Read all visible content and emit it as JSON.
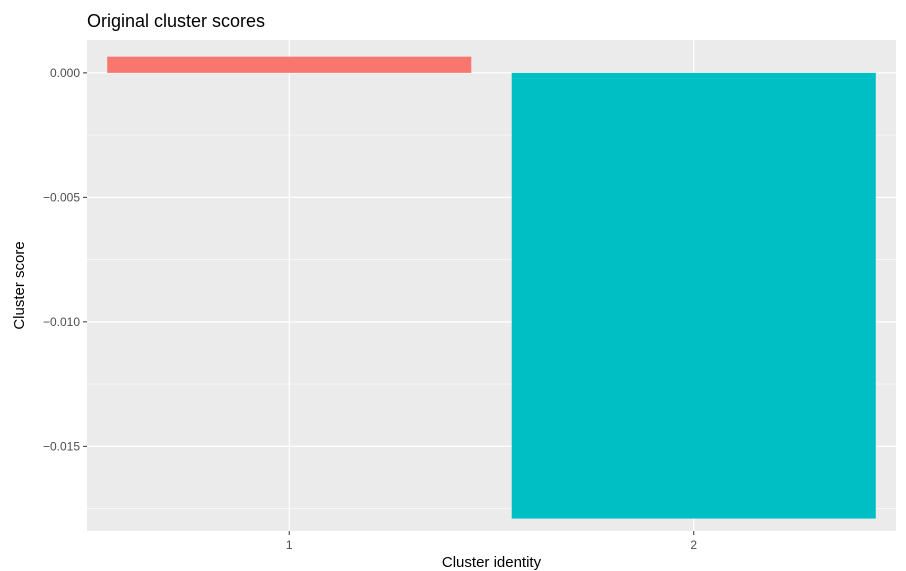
{
  "chart_data": {
    "type": "bar",
    "title": "Original cluster scores",
    "xlabel": "Cluster identity",
    "ylabel": "Cluster score",
    "categories": [
      "1",
      "2"
    ],
    "values": [
      0.00065,
      -0.0179
    ],
    "bar_colors": [
      "#F8766D",
      "#00BFC4"
    ],
    "ylim": [
      -0.0184,
      0.00132
    ],
    "y_ticks": [
      0.0,
      -0.005,
      -0.01,
      -0.015
    ],
    "y_tick_labels": [
      "0.000",
      "−0.005",
      "−0.010",
      "−0.015"
    ],
    "grid": true,
    "panel_background": "#EBEBEB",
    "grid_color": "#FFFFFF",
    "legend": "none"
  }
}
